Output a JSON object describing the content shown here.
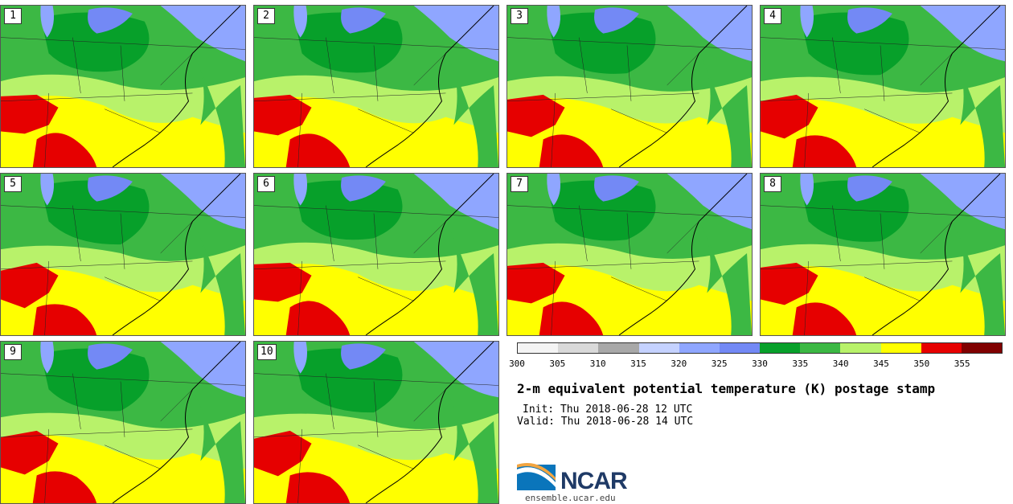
{
  "panels": [
    {
      "label": "1"
    },
    {
      "label": "2"
    },
    {
      "label": "3"
    },
    {
      "label": "4"
    },
    {
      "label": "5"
    },
    {
      "label": "6"
    },
    {
      "label": "7"
    },
    {
      "label": "8"
    },
    {
      "label": "9"
    },
    {
      "label": "10"
    }
  ],
  "colorbar": {
    "colors": [
      "#f4f4f4",
      "#d9d9d9",
      "#a8a8a8",
      "#c5d2ff",
      "#8fa6ff",
      "#7389f5",
      "#07a02a",
      "#3cb844",
      "#b8f26a",
      "#ffff00",
      "#e60000",
      "#800000"
    ],
    "ticks": [
      "300",
      "305",
      "310",
      "315",
      "320",
      "325",
      "330",
      "335",
      "340",
      "345",
      "350",
      "355"
    ]
  },
  "title": "2-m equivalent potential temperature (K) postage stamp",
  "init": "Init: Thu 2018-06-28 12 UTC",
  "valid": "Valid: Thu 2018-06-28 14 UTC",
  "logo": {
    "text": "NCAR",
    "colors": {
      "blue": "#0a75bb",
      "navy": "#1f3a66"
    }
  },
  "site": "ensemble.ucar.edu"
}
